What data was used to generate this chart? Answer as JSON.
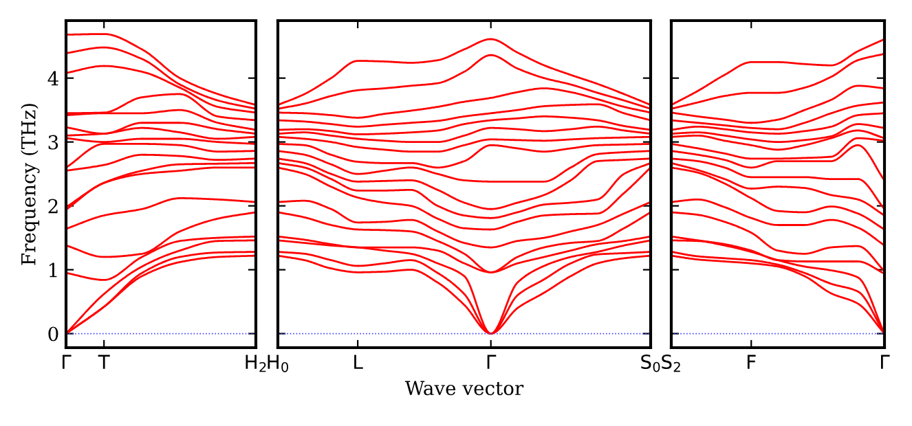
{
  "chart_data": [
    {
      "type": "line",
      "ylabel": "Frequency (THz)",
      "categories": [
        "Γ",
        "T",
        null,
        null,
        null,
        "H$_{2}$"
      ],
      "ylim": [
        -0.22,
        4.9
      ],
      "yticks": [
        0,
        1,
        2,
        3,
        4
      ],
      "grid": false,
      "marker": "none",
      "line_style": "solid",
      "ref_lines": [
        {
          "axis": "y",
          "value": 0,
          "label": null,
          "color": "#4444ff",
          "line_style": "dotted"
        }
      ],
      "series": [
        {
          "color": "#ff0000",
          "values": [
            0,
            0.42,
            0.9,
            1.12,
            1.2,
            1.22
          ]
        },
        {
          "color": "#ff0000",
          "values": [
            0,
            0.42,
            0.95,
            1.2,
            1.27,
            1.28
          ]
        },
        {
          "color": "#ff0000",
          "values": [
            0,
            0.62,
            1.05,
            1.3,
            1.45,
            1.46
          ]
        },
        {
          "color": "#ff0000",
          "values": [
            0.95,
            0.84,
            1.2,
            1.45,
            1.5,
            1.52
          ]
        },
        {
          "color": "#ff0000",
          "values": [
            1.38,
            1.2,
            1.25,
            1.6,
            1.8,
            1.9
          ]
        },
        {
          "color": "#ff0000",
          "values": [
            1.64,
            1.85,
            1.95,
            2.12,
            2.1,
            2.06
          ]
        },
        {
          "color": "#ff0000",
          "values": [
            1.94,
            2.36,
            2.5,
            2.55,
            2.6,
            2.6
          ]
        },
        {
          "color": "#ff0000",
          "values": [
            1.98,
            2.36,
            2.55,
            2.65,
            2.66,
            2.67
          ]
        },
        {
          "color": "#ff0000",
          "values": [
            2.55,
            2.64,
            2.8,
            2.78,
            2.72,
            2.74
          ]
        },
        {
          "color": "#ff0000",
          "values": [
            2.6,
            2.97,
            2.97,
            2.95,
            2.85,
            2.86
          ]
        },
        {
          "color": "#ff0000",
          "values": [
            3.06,
            3.0,
            3.05,
            3.05,
            3.0,
            2.97
          ]
        },
        {
          "color": "#ff0000",
          "values": [
            3.1,
            3.13,
            3.22,
            3.15,
            3.05,
            3.08
          ]
        },
        {
          "color": "#ff0000",
          "values": [
            3.23,
            3.13,
            3.3,
            3.3,
            3.2,
            3.13
          ]
        },
        {
          "color": "#ff0000",
          "values": [
            3.42,
            3.45,
            3.45,
            3.5,
            3.3,
            3.19
          ]
        },
        {
          "color": "#ff0000",
          "values": [
            3.45,
            3.46,
            3.7,
            3.75,
            3.4,
            3.34
          ]
        },
        {
          "color": "#ff0000",
          "values": [
            4.08,
            4.19,
            4.1,
            3.85,
            3.55,
            3.46
          ]
        },
        {
          "color": "#ff0000",
          "values": [
            4.39,
            4.48,
            4.3,
            3.9,
            3.65,
            3.52
          ]
        },
        {
          "color": "#ff0000",
          "values": [
            4.68,
            4.69,
            4.45,
            4.0,
            3.75,
            3.58
          ]
        }
      ]
    },
    {
      "type": "line",
      "xlabel": "Wave vector",
      "categories": [
        "H$_{0}$",
        null,
        null,
        "L",
        null,
        null,
        null,
        null,
        "Γ",
        null,
        null,
        null,
        null,
        null,
        "S$_{0}$"
      ],
      "ylim": [
        -0.22,
        4.9
      ],
      "yticks": [
        0,
        1,
        2,
        3,
        4
      ],
      "grid": false,
      "marker": "none",
      "line_style": "solid",
      "tick_labels": "x",
      "ref_lines": [
        {
          "axis": "y",
          "value": 0,
          "label": null,
          "color": "#4444ff",
          "line_style": "dotted"
        }
      ],
      "series": [
        {
          "color": "#ff0000",
          "values": [
            1.22,
            1.15,
            1.02,
            0.96,
            0.97,
            1.0,
            0.8,
            0.45,
            0,
            0.4,
            0.64,
            0.9,
            1.1,
            1.18,
            1.22
          ]
        },
        {
          "color": "#ff0000",
          "values": [
            1.28,
            1.25,
            1.15,
            1.06,
            1.1,
            1.15,
            0.95,
            0.62,
            0,
            0.6,
            0.85,
            1.1,
            1.24,
            1.26,
            1.28
          ]
        },
        {
          "color": "#ff0000",
          "values": [
            1.46,
            1.42,
            1.38,
            1.35,
            1.3,
            1.25,
            1.1,
            0.9,
            0,
            0.8,
            1.06,
            1.2,
            1.28,
            1.38,
            1.46
          ]
        },
        {
          "color": "#ff0000",
          "values": [
            1.52,
            1.47,
            1.4,
            1.35,
            1.35,
            1.35,
            1.3,
            1.1,
            0.96,
            1.1,
            1.2,
            1.3,
            1.4,
            1.45,
            1.52
          ]
        },
        {
          "color": "#ff0000",
          "values": [
            1.9,
            1.82,
            1.7,
            1.63,
            1.62,
            1.6,
            1.45,
            1.25,
            0.96,
            1.2,
            1.35,
            1.42,
            1.45,
            1.65,
            1.9
          ]
        },
        {
          "color": "#ff0000",
          "values": [
            2.06,
            2.08,
            1.95,
            1.74,
            1.75,
            1.78,
            1.6,
            1.42,
            1.35,
            1.45,
            1.5,
            1.6,
            1.7,
            1.88,
            2.06
          ]
        },
        {
          "color": "#ff0000",
          "values": [
            2.6,
            2.5,
            2.3,
            2.13,
            2.05,
            2.0,
            1.8,
            1.65,
            1.63,
            1.75,
            1.85,
            1.87,
            1.88,
            2.2,
            2.6
          ]
        },
        {
          "color": "#ff0000",
          "values": [
            2.67,
            2.6,
            2.42,
            2.24,
            2.24,
            2.25,
            2.0,
            1.85,
            1.81,
            1.9,
            2.02,
            2.05,
            2.1,
            2.5,
            2.67
          ]
        },
        {
          "color": "#ff0000",
          "values": [
            2.74,
            2.67,
            2.5,
            2.38,
            2.39,
            2.4,
            2.25,
            2.05,
            1.95,
            2.05,
            2.17,
            2.4,
            2.7,
            2.72,
            2.74
          ]
        },
        {
          "color": "#ff0000",
          "values": [
            2.86,
            2.8,
            2.65,
            2.5,
            2.55,
            2.6,
            2.5,
            2.4,
            2.38,
            2.38,
            2.38,
            2.6,
            2.81,
            2.84,
            2.86
          ]
        },
        {
          "color": "#ff0000",
          "values": [
            2.97,
            2.95,
            2.8,
            2.69,
            2.67,
            2.67,
            2.6,
            2.7,
            2.95,
            2.9,
            2.85,
            2.9,
            2.95,
            2.96,
            2.97
          ]
        },
        {
          "color": "#ff0000",
          "values": [
            3.08,
            3.05,
            3.0,
            2.92,
            2.88,
            2.85,
            2.85,
            2.95,
            3.04,
            3.03,
            3.02,
            3.04,
            3.06,
            3.07,
            3.08
          ]
        },
        {
          "color": "#ff0000",
          "values": [
            3.13,
            3.15,
            3.1,
            3.05,
            3.02,
            3.0,
            3.0,
            3.1,
            3.22,
            3.2,
            3.17,
            3.2,
            3.24,
            3.18,
            3.13
          ]
        },
        {
          "color": "#ff0000",
          "values": [
            3.19,
            3.2,
            3.17,
            3.12,
            3.13,
            3.15,
            3.18,
            3.28,
            3.34,
            3.37,
            3.4,
            3.38,
            3.34,
            3.25,
            3.19
          ]
        },
        {
          "color": "#ff0000",
          "values": [
            3.34,
            3.32,
            3.28,
            3.24,
            3.27,
            3.3,
            3.33,
            3.4,
            3.45,
            3.5,
            3.56,
            3.58,
            3.59,
            3.45,
            3.34
          ]
        },
        {
          "color": "#ff0000",
          "values": [
            3.46,
            3.45,
            3.42,
            3.38,
            3.44,
            3.49,
            3.55,
            3.63,
            3.69,
            3.78,
            3.84,
            3.78,
            3.67,
            3.55,
            3.46
          ]
        },
        {
          "color": "#ff0000",
          "values": [
            3.52,
            3.6,
            3.72,
            3.81,
            3.84,
            3.88,
            3.92,
            4.1,
            4.36,
            4.15,
            4.0,
            3.9,
            3.77,
            3.65,
            3.52
          ]
        },
        {
          "color": "#ff0000",
          "values": [
            3.58,
            3.75,
            4.0,
            4.27,
            4.26,
            4.24,
            4.28,
            4.45,
            4.61,
            4.4,
            4.2,
            4.05,
            3.91,
            3.75,
            3.58
          ]
        }
      ]
    },
    {
      "type": "line",
      "categories": [
        "S$_{2}$",
        null,
        null,
        "F",
        null,
        null,
        null,
        null,
        "Γ"
      ],
      "ylim": [
        -0.22,
        4.9
      ],
      "yticks": [
        0,
        1,
        2,
        3,
        4
      ],
      "grid": false,
      "marker": "none",
      "line_style": "solid",
      "tick_labels": "x",
      "ref_lines": [
        {
          "axis": "y",
          "value": 0,
          "label": null,
          "color": "#4444ff",
          "line_style": "dotted"
        }
      ],
      "series": [
        {
          "color": "#ff0000",
          "values": [
            1.22,
            1.16,
            1.13,
            1.1,
            1.05,
            0.9,
            0.63,
            0.47,
            0
          ]
        },
        {
          "color": "#ff0000",
          "values": [
            1.28,
            1.21,
            1.18,
            1.15,
            1.08,
            0.95,
            0.78,
            0.66,
            0
          ]
        },
        {
          "color": "#ff0000",
          "values": [
            1.46,
            1.45,
            1.38,
            1.28,
            1.15,
            1.05,
            0.99,
            0.88,
            0
          ]
        },
        {
          "color": "#ff0000",
          "values": [
            1.52,
            1.46,
            1.4,
            1.3,
            1.15,
            1.13,
            1.13,
            1.13,
            0.94
          ]
        },
        {
          "color": "#ff0000",
          "values": [
            1.9,
            1.86,
            1.75,
            1.58,
            1.3,
            1.25,
            1.35,
            1.37,
            0.98
          ]
        },
        {
          "color": "#ff0000",
          "values": [
            2.06,
            2.1,
            1.98,
            1.81,
            1.7,
            1.7,
            1.78,
            1.66,
            1.38
          ]
        },
        {
          "color": "#ff0000",
          "values": [
            2.6,
            2.52,
            2.35,
            2.12,
            1.92,
            1.9,
            1.99,
            1.88,
            1.63
          ]
        },
        {
          "color": "#ff0000",
          "values": [
            2.67,
            2.56,
            2.42,
            2.27,
            2.3,
            2.28,
            2.17,
            2.1,
            1.85
          ]
        },
        {
          "color": "#ff0000",
          "values": [
            2.74,
            2.7,
            2.6,
            2.45,
            2.45,
            2.45,
            2.42,
            2.42,
            1.95
          ]
        },
        {
          "color": "#ff0000",
          "values": [
            2.86,
            2.8,
            2.72,
            2.6,
            2.7,
            2.7,
            2.7,
            2.95,
            2.4
          ]
        },
        {
          "color": "#ff0000",
          "values": [
            2.97,
            2.9,
            2.82,
            2.74,
            2.74,
            2.75,
            2.77,
            3.06,
            3.02
          ]
        },
        {
          "color": "#ff0000",
          "values": [
            3.08,
            3.1,
            3.02,
            2.95,
            2.88,
            2.95,
            3.06,
            3.18,
            3.06
          ]
        },
        {
          "color": "#ff0000",
          "values": [
            3.13,
            3.15,
            3.1,
            3.04,
            3.0,
            3.03,
            3.09,
            3.28,
            3.22
          ]
        },
        {
          "color": "#ff0000",
          "values": [
            3.19,
            3.24,
            3.2,
            3.15,
            3.13,
            3.17,
            3.24,
            3.42,
            3.45
          ]
        },
        {
          "color": "#ff0000",
          "values": [
            3.34,
            3.3,
            3.26,
            3.22,
            3.2,
            3.3,
            3.45,
            3.57,
            3.62
          ]
        },
        {
          "color": "#ff0000",
          "values": [
            3.46,
            3.4,
            3.35,
            3.3,
            3.35,
            3.5,
            3.66,
            3.88,
            3.84
          ]
        },
        {
          "color": "#ff0000",
          "values": [
            3.52,
            3.62,
            3.72,
            3.77,
            3.77,
            3.85,
            4.02,
            4.28,
            4.38
          ]
        },
        {
          "color": "#ff0000",
          "values": [
            3.58,
            3.8,
            4.05,
            4.25,
            4.25,
            4.22,
            4.2,
            4.42,
            4.61
          ]
        }
      ]
    }
  ]
}
